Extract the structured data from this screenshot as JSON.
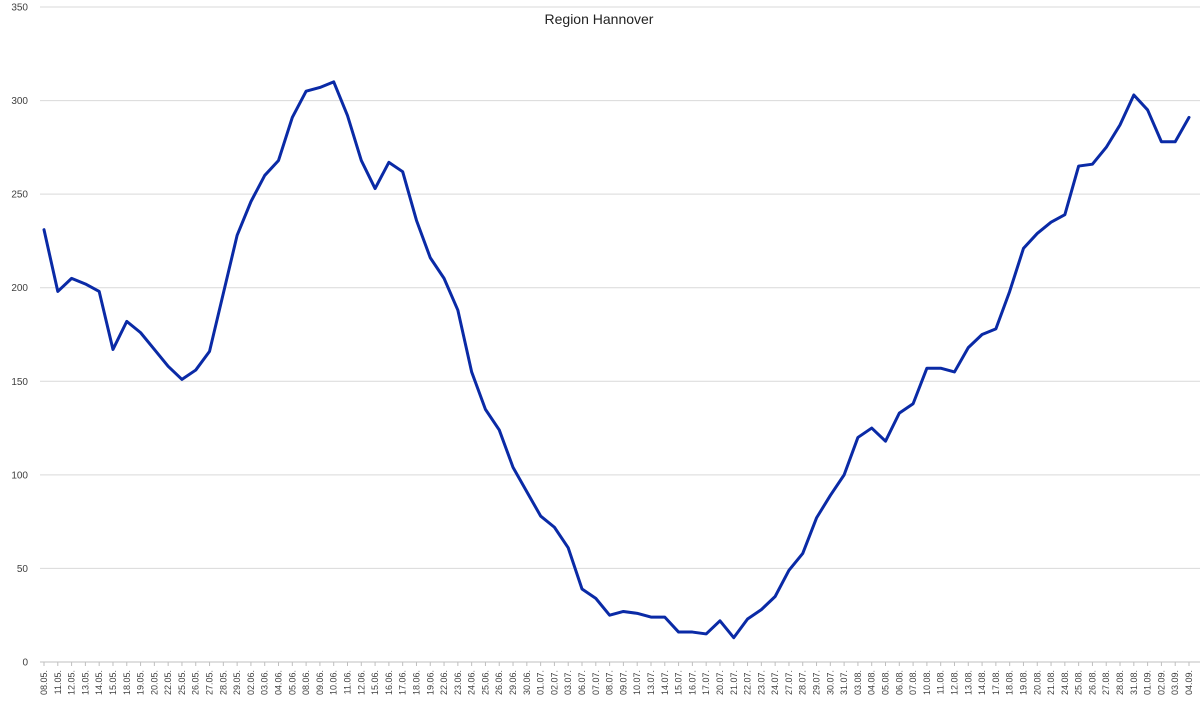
{
  "chart_data": {
    "type": "line",
    "title": "Region Hannover",
    "xlabel": "",
    "ylabel": "",
    "ylim": [
      0,
      350
    ],
    "yticks": [
      0,
      50,
      100,
      150,
      200,
      250,
      300,
      350
    ],
    "grid": "horizontal",
    "legend": "none",
    "colors": {
      "line": "#0a2aa6",
      "grid": "#d9d9d9",
      "text": "#404040"
    },
    "categories": [
      "08.05.",
      "11.05.",
      "12.05.",
      "13.05.",
      "14.05.",
      "15.05.",
      "18.05.",
      "19.05.",
      "20.05.",
      "22.05.",
      "25.05.",
      "26.05.",
      "27.05.",
      "28.05.",
      "29.05.",
      "02.06.",
      "03.06.",
      "04.06.",
      "05.06.",
      "08.06.",
      "09.06.",
      "10.06.",
      "11.06.",
      "12.06.",
      "15.06.",
      "16.06.",
      "17.06.",
      "18.06.",
      "19.06.",
      "22.06.",
      "23.06.",
      "24.06.",
      "25.06.",
      "26.06.",
      "29.06.",
      "30.06.",
      "01.07.",
      "02.07.",
      "03.07.",
      "06.07.",
      "07.07.",
      "08.07.",
      "09.07.",
      "10.07.",
      "13.07.",
      "14.07.",
      "15.07.",
      "16.07.",
      "17.07.",
      "20.07.",
      "21.07.",
      "22.07.",
      "23.07.",
      "24.07.",
      "27.07.",
      "28.07.",
      "29.07.",
      "30.07.",
      "31.07.",
      "03.08.",
      "04.08.",
      "05.08.",
      "06.08.",
      "07.08.",
      "10.08.",
      "11.08.",
      "12.08.",
      "13.08.",
      "14.08.",
      "17.08.",
      "18.08.",
      "19.08.",
      "20.08.",
      "21.08.",
      "24.08.",
      "25.08.",
      "26.08.",
      "27.08.",
      "28.08.",
      "31.08.",
      "01.09.",
      "02.09.",
      "03.09.",
      "04.09."
    ],
    "values": [
      231,
      198,
      205,
      202,
      198,
      167,
      182,
      176,
      167,
      158,
      151,
      156,
      166,
      197,
      228,
      246,
      260,
      268,
      291,
      305,
      307,
      310,
      292,
      268,
      253,
      267,
      262,
      236,
      216,
      205,
      188,
      155,
      135,
      124,
      104,
      91,
      78,
      72,
      61,
      39,
      34,
      25,
      27,
      26,
      24,
      24,
      16,
      16,
      15,
      22,
      13,
      23,
      28,
      35,
      49,
      58,
      77,
      89,
      100,
      120,
      125,
      118,
      133,
      138,
      157,
      157,
      155,
      168,
      175,
      178,
      198,
      221,
      229,
      235,
      239,
      265,
      266,
      275,
      287,
      303,
      295,
      278,
      278,
      291
    ]
  }
}
